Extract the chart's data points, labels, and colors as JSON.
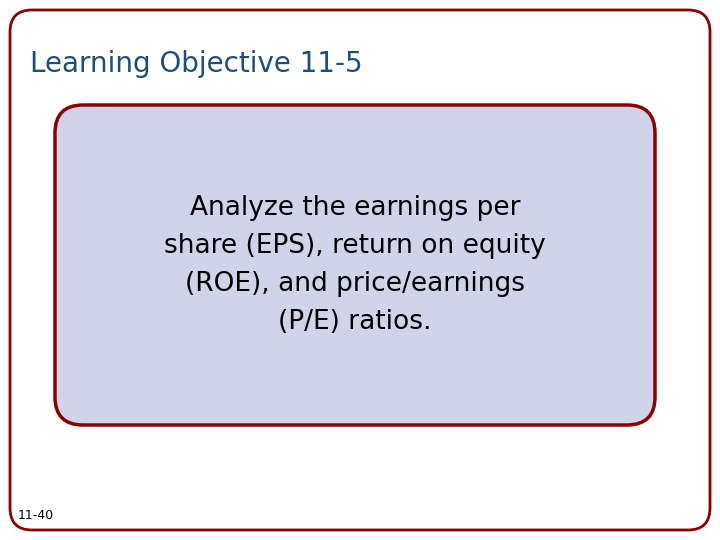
{
  "title": "Learning Objective 11-5",
  "title_color": "#1F4E79",
  "title_fontsize": 20,
  "body_text": "Analyze the earnings per\nshare (EPS), return on equity\n(ROE), and price/earnings\n(P/E) ratios.",
  "body_fontsize": 19,
  "body_text_color": "#000000",
  "background_color": "#FFFFFF",
  "outer_box_edge_color": "#8B0000",
  "outer_box_face_color": "#FFFFFF",
  "inner_box_edge_color": "#8B0000",
  "inner_box_face_color": "#D0D4E8",
  "footer_text": "11-40",
  "footer_color": "#000000",
  "footer_fontsize": 9
}
